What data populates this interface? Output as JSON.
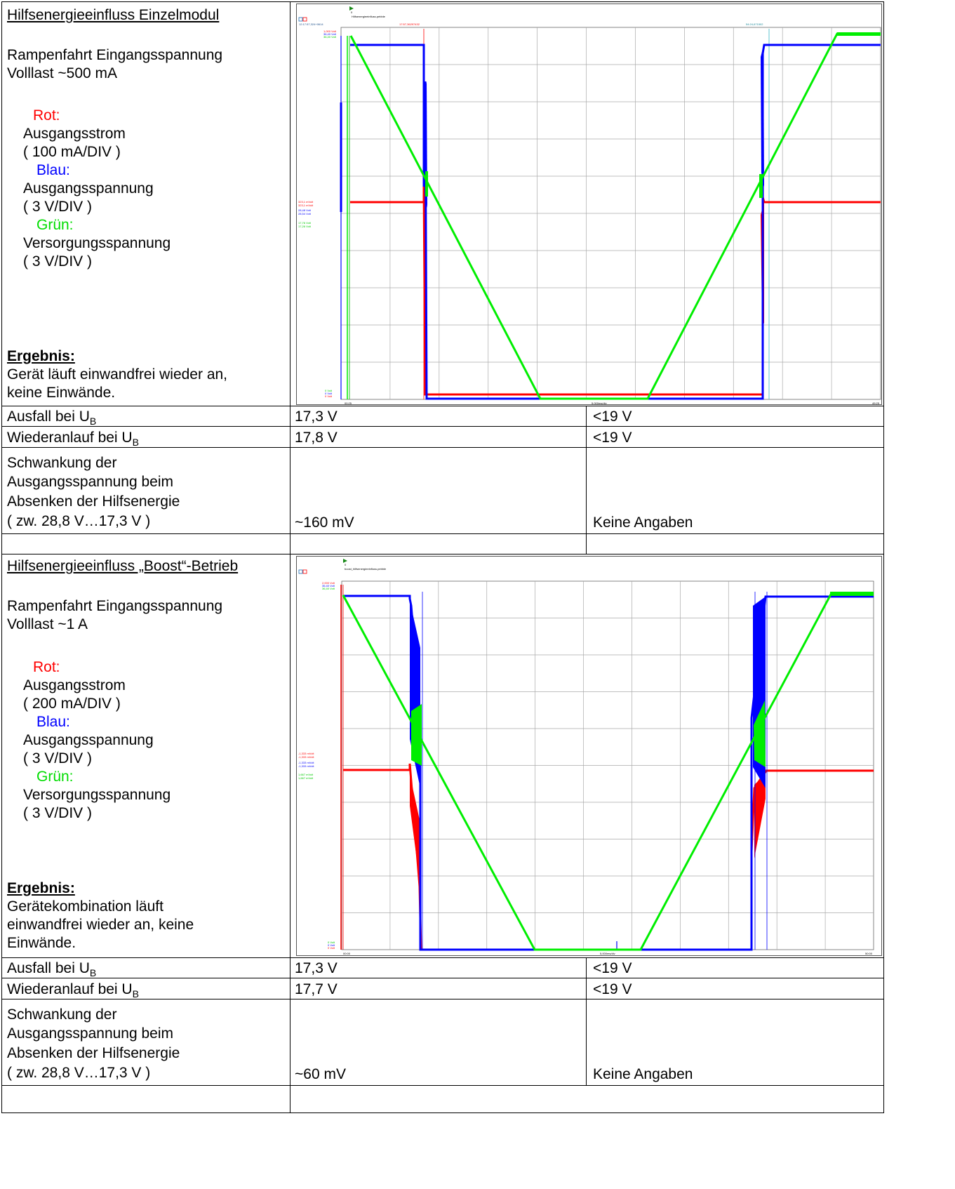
{
  "section1": {
    "title": "Hilfsenergieeinfluss Einzelmodul",
    "line1": "Rampenfahrt Eingangsspannung",
    "line2": "Volllast ~500 mA",
    "red_label": "Rot:",
    "red_desc": "Ausgangsstrom",
    "red_scale": "( 100 mA/DIV )",
    "blue_label": "Blau:",
    "blue_desc": "Ausgangsspannung",
    "blue_scale": "( 3 V/DIV )",
    "green_label": "Grün:",
    "green_desc": "Versorgungsspannung",
    "green_scale": "( 3 V/DIV )",
    "result_label": "Ergebnis:",
    "result_line1": "Gerät läuft einwandfrei wieder an,",
    "result_line2": "keine Einwände.",
    "scope": {
      "filename": "Hilfsenergieeinfluss.pebble",
      "cursor_left": "12:17:57,324+0614",
      "cursor_red": "17:57,36297432",
      "cursor_cyan": "54:24,671502",
      "time_start": "00:25",
      "time_div": "5,000ms/div",
      "time_end": "49:25",
      "legend": [
        "1,000 Volt",
        "36,40 Volt",
        "36,40 Volt"
      ],
      "mid_legend": [
        "323,1 mVolt",
        "323,1 mVolt",
        "28,48 Volt",
        "28,54 Volt",
        "17,76 Volt",
        "17,26 Volt"
      ],
      "bottom_legend": [
        "0 Volt",
        "0 Volt",
        "0 Volt"
      ]
    },
    "ausfall_label": "Ausfall bei U",
    "ausfall_sub": "B",
    "ausfall_value": "17,3 V",
    "ausfall_spec": "<19 V",
    "wieder_label": "Wiederanlauf bei U",
    "wieder_sub": "B",
    "wieder_value": "17,8 V",
    "wieder_spec": "<19 V",
    "schw_line1": "Schwankung der",
    "schw_line2": "Ausgangsspannung beim",
    "schw_line3": "Absenken der Hilfsenergie",
    "schw_line4": "( zw. 28,8 V…17,3 V )",
    "schw_value": "~160 mV",
    "schw_spec": "Keine Angaben"
  },
  "section2": {
    "title": "Hilfsenergieeinfluss „Boost“-Betrieb",
    "line1": "Rampenfahrt Eingangsspannung",
    "line2": "Volllast ~1 A",
    "red_label": "Rot:",
    "red_desc": "Ausgangsstrom",
    "red_scale": "( 200 mA/DIV )",
    "blue_label": "Blau:",
    "blue_desc": "Ausgangsspannung",
    "blue_scale": "( 3 V/DIV )",
    "green_label": "Grün:",
    "green_desc": "Versorgungsspannung",
    "green_scale": "( 3 V/DIV )",
    "result_label": "Ergebnis:",
    "result_line1": "Gerätekombination läuft",
    "result_line2": "einwandfrei wieder an, keine",
    "result_line3": "Einwände.",
    "scope": {
      "filename": "boost_hilfsenergieeinfluss.pebble",
      "time_start": "00:00",
      "time_div": "5,000ms/div",
      "time_end": "50:00",
      "legend": [
        "2,000 Volt",
        "36,40 Volt",
        "36,40 Volt"
      ],
      "mid_legend": [
        "-1,333 mVolt",
        "-1,333 mVolt",
        "-1,333 mVolt",
        "-1,333 mVolt",
        "1,667 mVolt",
        "1,667 mVolt"
      ],
      "bottom_legend": [
        "0 Volt",
        "0 Volt",
        "0 Volt"
      ]
    },
    "ausfall_label": "Ausfall bei U",
    "ausfall_sub": "B",
    "ausfall_value": "17,3 V",
    "ausfall_spec": "<19 V",
    "wieder_label": "Wiederanlauf bei U",
    "wieder_sub": "B",
    "wieder_value": "17,7 V",
    "wieder_spec": "<19 V",
    "schw_line1": "Schwankung der",
    "schw_line2": "Ausgangsspannung beim",
    "schw_line3": "Absenken der Hilfsenergie",
    "schw_line4": "( zw. 28,8 V…17,3 V )",
    "schw_value": "~60 mV",
    "schw_spec": "Keine Angaben"
  },
  "colors": {
    "red": "#ff0000",
    "blue": "#0000ff",
    "green": "#00ee00",
    "grid": "#aaaaaa"
  }
}
